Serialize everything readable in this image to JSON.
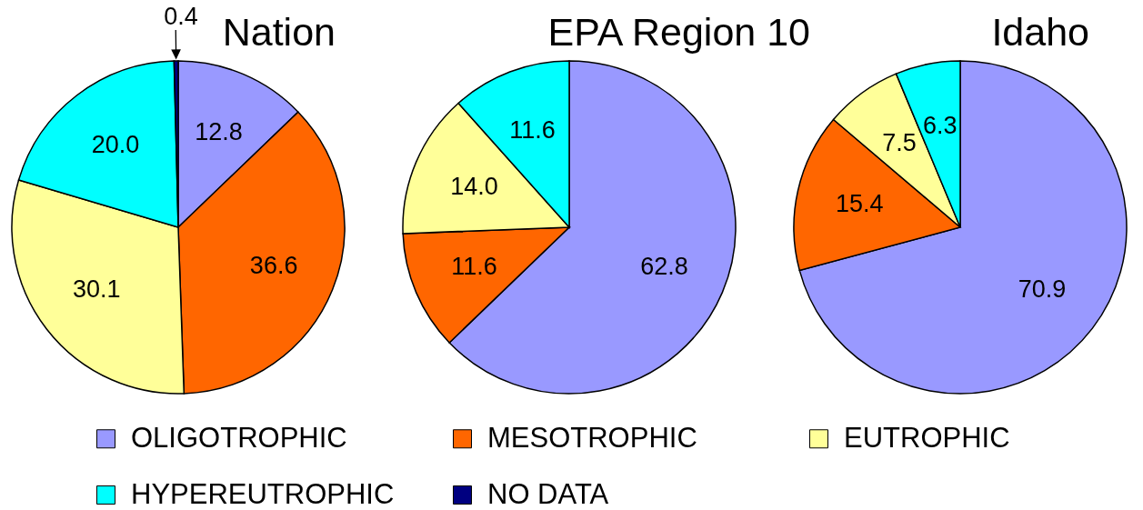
{
  "chart_data": [
    {
      "type": "pie",
      "title": "Nation",
      "categories": [
        "OLIGOTROPHIC",
        "MESOTROPHIC",
        "EUTROPHIC",
        "HYPEREUTROPHIC",
        "NO DATA"
      ],
      "values": [
        12.8,
        36.6,
        30.1,
        20.0,
        0.4
      ],
      "colors": [
        "#9999ff",
        "#ff6600",
        "#ffff99",
        "#00ffff",
        "#000080"
      ],
      "value_labels": [
        "12.8",
        "36.6",
        "30.1",
        "20.0",
        "0.4"
      ],
      "legend": "bottom"
    },
    {
      "type": "pie",
      "title": "EPA Region 10",
      "categories": [
        null,
        null,
        null,
        null
      ],
      "values": [
        62.8,
        11.6,
        14.0,
        11.6
      ],
      "colors": [
        "#9999ff",
        "#ff6600",
        "#ffff99",
        "#00ffff"
      ],
      "value_labels": [
        "62.8",
        "11.6",
        "14.0",
        "11.6"
      ]
    },
    {
      "type": "pie",
      "title": "Idaho",
      "categories": [
        null,
        null,
        null,
        null
      ],
      "values": [
        70.9,
        15.4,
        7.5,
        6.3
      ],
      "colors": [
        "#9999ff",
        "#ff6600",
        "#ffff99",
        "#00ffff"
      ],
      "value_labels": [
        "70.9",
        "15.4",
        "7.5",
        "6.3"
      ]
    }
  ]
}
